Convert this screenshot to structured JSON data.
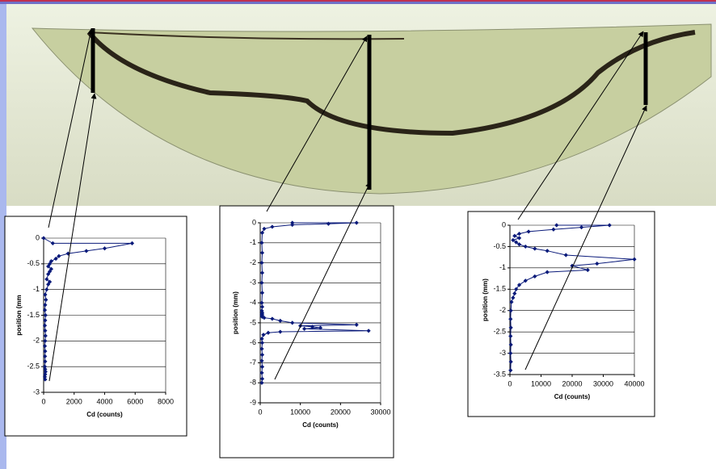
{
  "chart_data": [
    {
      "type": "line",
      "xlabel": "Cd (counts)",
      "ylabel": "position (mm",
      "color": "#0a1a7a",
      "grid": true,
      "xlim": [
        0,
        8000
      ],
      "xticks": [
        0,
        2000,
        4000,
        6000,
        8000
      ],
      "ylim": [
        -3,
        0
      ],
      "yticks": [
        0,
        -0.5,
        -1,
        -1.5,
        -2,
        -2.5,
        -3
      ],
      "x": [
        0,
        600,
        5800,
        4000,
        2800,
        1600,
        1000,
        800,
        500,
        400,
        300,
        500,
        400,
        300,
        200,
        400,
        300,
        200,
        100,
        150,
        100,
        80,
        120,
        100,
        80,
        100,
        120,
        100,
        80,
        100,
        90,
        100,
        80,
        100,
        120,
        100,
        80,
        100
      ],
      "values": [
        0,
        -0.1,
        -0.1,
        -0.2,
        -0.25,
        -0.3,
        -0.35,
        -0.4,
        -0.45,
        -0.5,
        -0.55,
        -0.6,
        -0.65,
        -0.7,
        -0.8,
        -0.85,
        -0.9,
        -1.0,
        -1.1,
        -1.2,
        -1.3,
        -1.4,
        -1.5,
        -1.6,
        -1.7,
        -1.8,
        -1.9,
        -2.0,
        -2.1,
        -2.2,
        -2.3,
        -2.4,
        -2.5,
        -2.55,
        -2.6,
        -2.65,
        -2.7,
        -2.75
      ]
    },
    {
      "type": "line",
      "xlabel": "Cd (counts)",
      "ylabel": "position (mm)",
      "color": "#0a1a7a",
      "grid": true,
      "xlim": [
        0,
        30000
      ],
      "xticks": [
        0,
        10000,
        20000,
        30000
      ],
      "ylim": [
        -9,
        0
      ],
      "yticks": [
        0,
        -1,
        -2,
        -3,
        -4,
        -5,
        -6,
        -7,
        -8,
        -9
      ],
      "x": [
        8000,
        24000,
        17000,
        8000,
        3000,
        1000,
        500,
        400,
        500,
        400,
        500,
        400,
        500,
        400,
        500,
        400,
        500,
        400,
        500,
        400,
        500,
        1000,
        3000,
        5000,
        8000,
        24000,
        10000,
        13000,
        15000,
        11000,
        27000,
        5000,
        2000,
        800,
        400,
        500,
        400,
        500,
        400,
        500,
        400,
        500,
        400
      ],
      "values": [
        0,
        0,
        -0.05,
        -0.1,
        -0.2,
        -0.3,
        -0.5,
        -1,
        -1.5,
        -2,
        -2.5,
        -3,
        -3.5,
        -4,
        -4.2,
        -4.4,
        -4.5,
        -4.55,
        -4.6,
        -4.65,
        -4.7,
        -4.75,
        -4.8,
        -4.9,
        -5.0,
        -5.1,
        -5.15,
        -5.2,
        -5.25,
        -5.3,
        -5.4,
        -5.45,
        -5.5,
        -5.6,
        -5.8,
        -6.0,
        -6.3,
        -6.6,
        -6.9,
        -7.2,
        -7.5,
        -7.8,
        -8.0
      ]
    },
    {
      "type": "line",
      "xlabel": "Cd (counts)",
      "ylabel": "position (mm)",
      "color": "#0a1a7a",
      "grid": true,
      "xlim": [
        0,
        40000
      ],
      "xticks": [
        0,
        10000,
        20000,
        30000,
        40000
      ],
      "ylim": [
        -3.5,
        0
      ],
      "yticks": [
        0,
        -0.5,
        -1,
        -1.5,
        -2,
        -2.5,
        -3,
        -3.5
      ],
      "x": [
        15000,
        32000,
        23000,
        14000,
        6000,
        3000,
        1500,
        3000,
        1000,
        2000,
        3000,
        5000,
        8000,
        12000,
        18000,
        40000,
        28000,
        20000,
        25000,
        12000,
        8000,
        5000,
        3000,
        2000,
        1500,
        1000,
        500,
        300,
        200,
        300,
        200,
        300,
        200,
        300,
        200
      ],
      "values": [
        0,
        0,
        -0.05,
        -0.1,
        -0.15,
        -0.2,
        -0.25,
        -0.3,
        -0.35,
        -0.4,
        -0.45,
        -0.5,
        -0.55,
        -0.6,
        -0.7,
        -0.8,
        -0.9,
        -0.95,
        -1.05,
        -1.1,
        -1.2,
        -1.3,
        -1.4,
        -1.5,
        -1.6,
        -1.7,
        -1.8,
        -2.0,
        -2.2,
        -2.4,
        -2.6,
        -2.8,
        -3.0,
        -3.2,
        -3.4
      ]
    }
  ]
}
